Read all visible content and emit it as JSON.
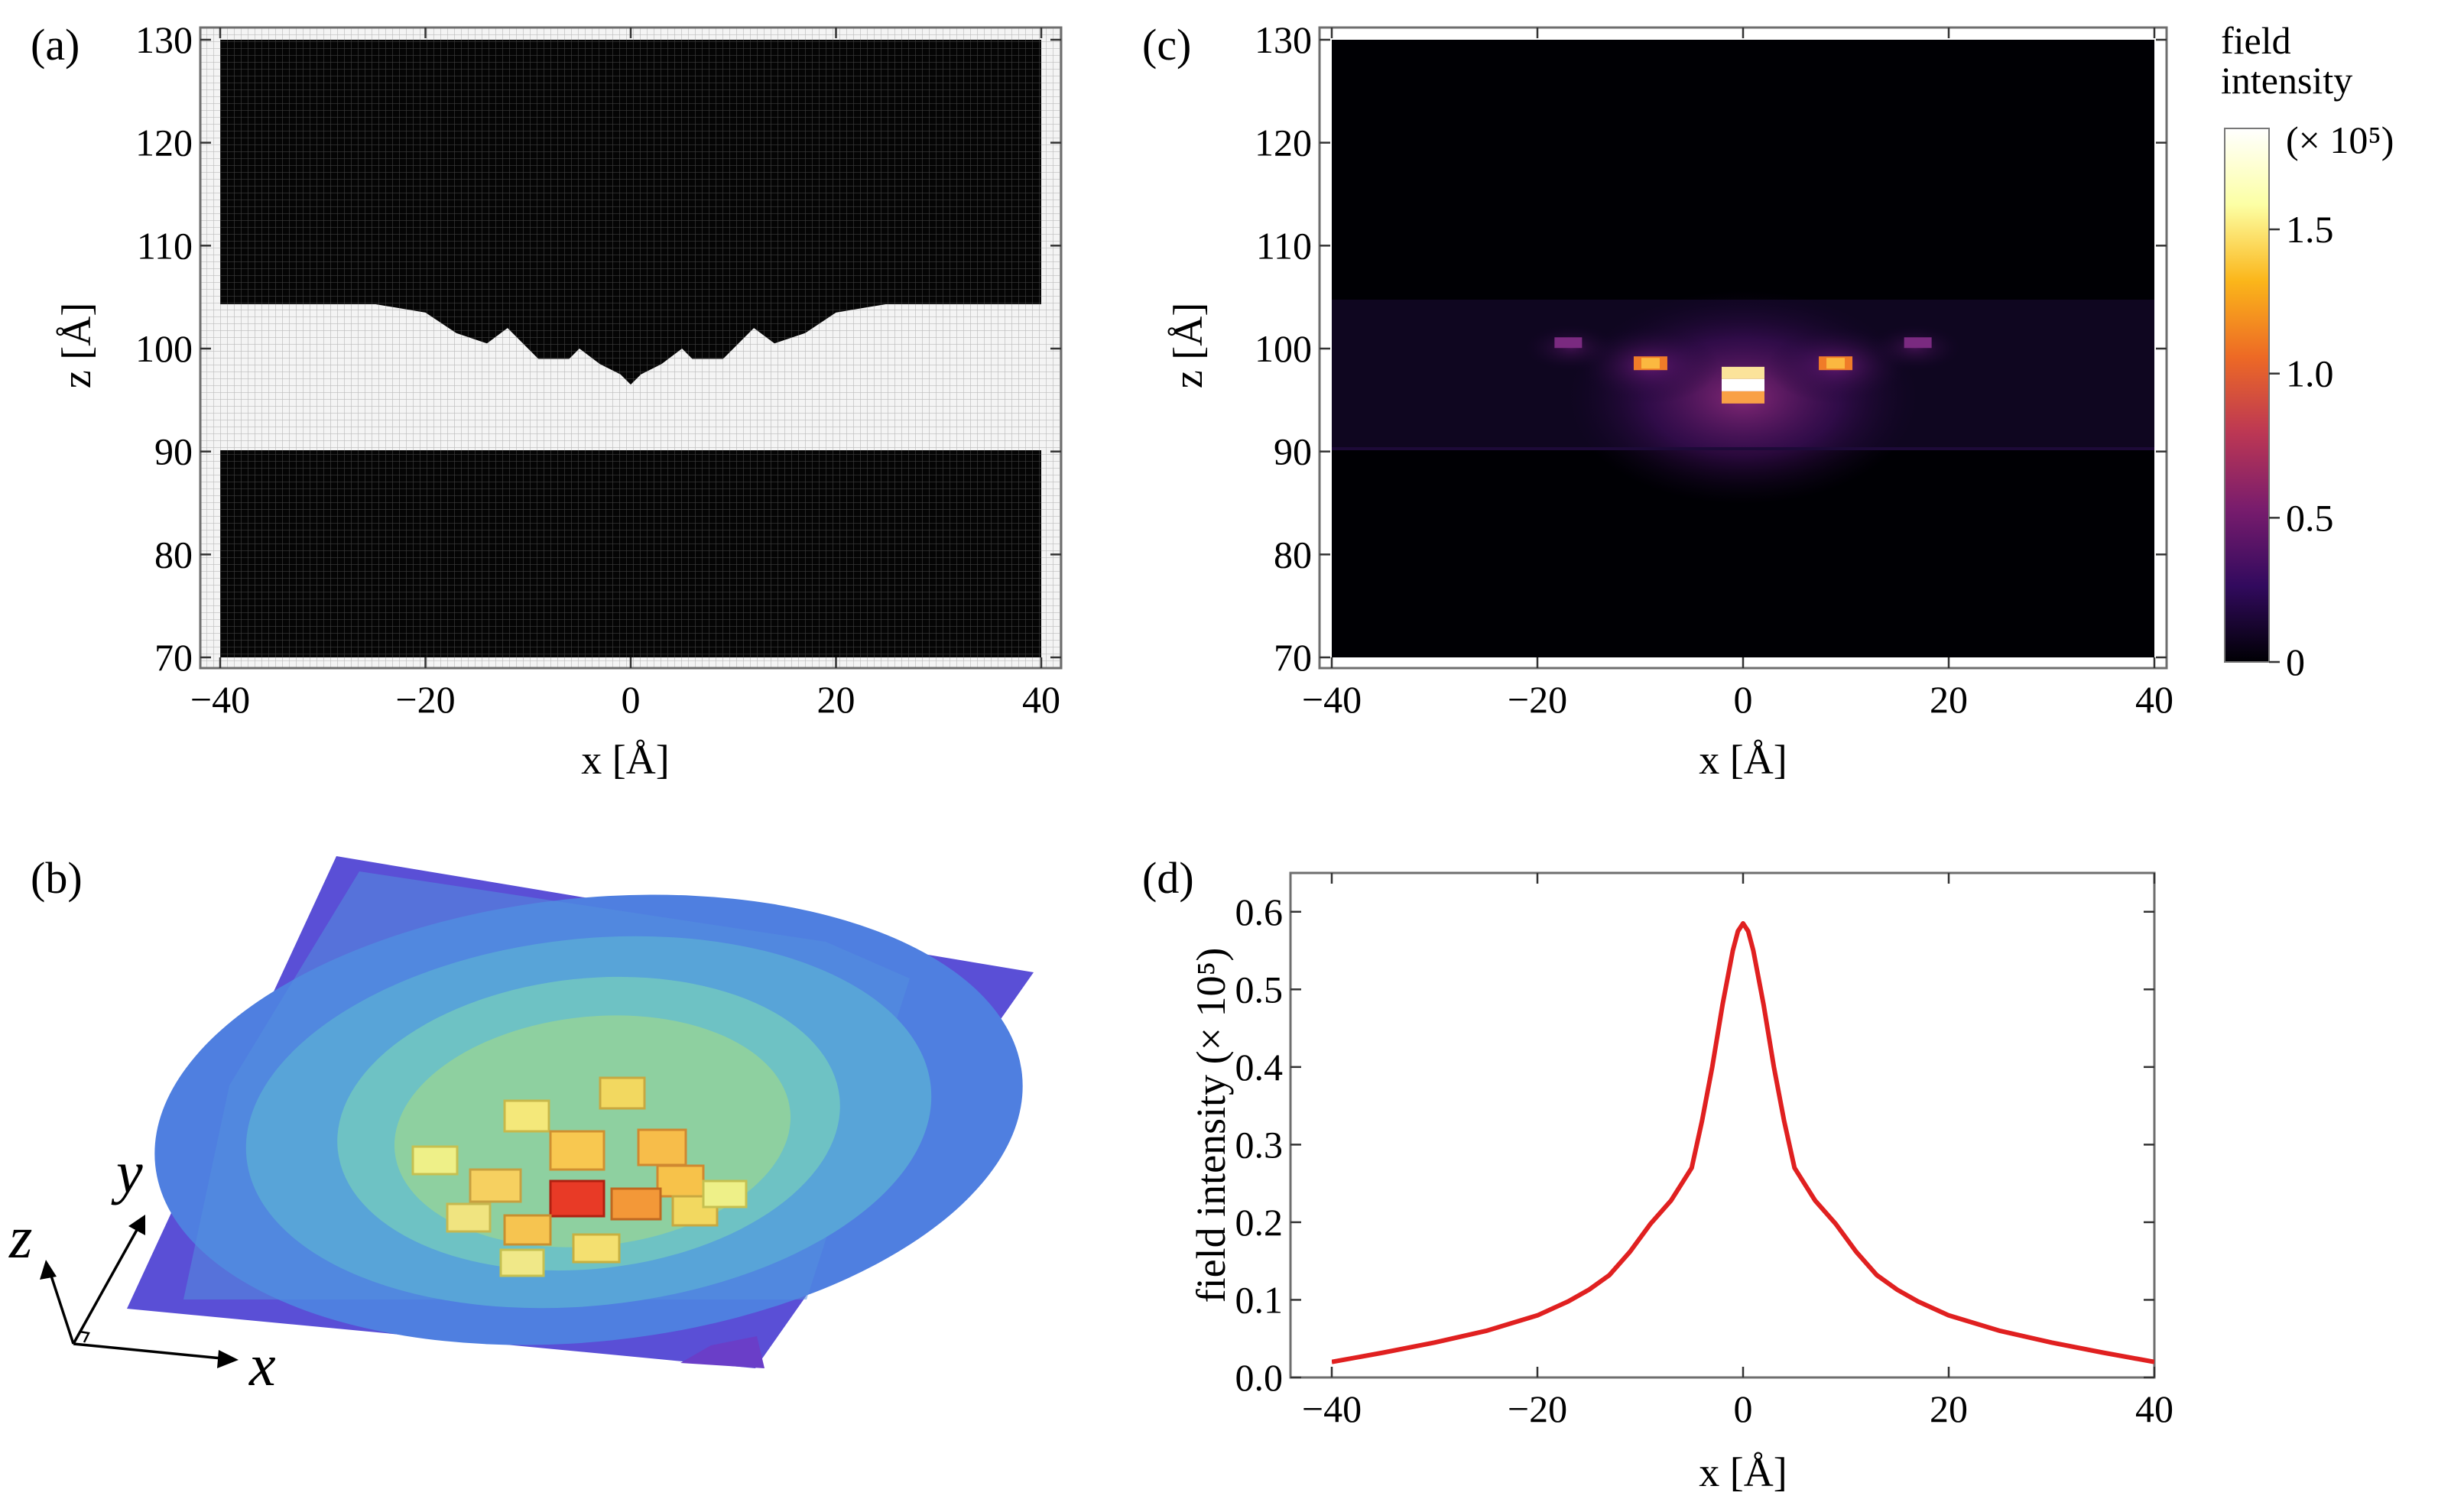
{
  "panels": {
    "a": {
      "label": "(a)"
    },
    "b": {
      "label": "(b)",
      "axes": {
        "x": "x",
        "y": "y",
        "z": "z"
      }
    },
    "c": {
      "label": "(c)"
    },
    "d": {
      "label": "(d)"
    }
  },
  "colorbar": {
    "title_line1": "field",
    "title_line2": "intensity",
    "unit": "(× 10⁵)",
    "ticks": [
      "0",
      "0.5",
      "1.0",
      "1.5"
    ],
    "tick_values": [
      0,
      0.5,
      1.0,
      1.5
    ],
    "range": [
      0,
      1.85
    ],
    "colors": [
      "#000004",
      "#320a5e",
      "#781c6d",
      "#bc3754",
      "#ed6925",
      "#fbb61a",
      "#fcffa4",
      "#ffffff"
    ]
  },
  "chart_data": [
    {
      "id": "a",
      "type": "heatmap",
      "description": "material mask",
      "xlabel": "x [Å]",
      "ylabel": "z [Å]",
      "xlim": [
        -40,
        40
      ],
      "ylim": [
        70,
        130
      ],
      "xticks": [
        -40,
        -20,
        0,
        20,
        40
      ],
      "yticks": [
        70,
        80,
        90,
        100,
        110,
        120,
        130
      ],
      "xtick_labels": [
        "−40",
        "−20",
        "0",
        "20",
        "40"
      ],
      "ytick_labels": [
        "70",
        "80",
        "90",
        "100",
        "110",
        "120",
        "130"
      ],
      "layer_bottom_z": 90,
      "layer_top_z": 104.5,
      "groove_profile": {
        "x": [
          -40,
          -26,
          -20,
          -17,
          -14,
          -12,
          -9,
          -6,
          -5,
          -3,
          -1,
          0,
          1,
          3,
          5,
          6,
          9,
          12,
          14,
          17,
          20,
          26,
          40
        ],
        "z": [
          104.5,
          104.5,
          103.5,
          101.5,
          100.5,
          102,
          99,
          99,
          100,
          98.5,
          97.5,
          96.5,
          97.5,
          98.5,
          100,
          99,
          99,
          102,
          100.5,
          101.5,
          103.5,
          104.5,
          104.5
        ]
      }
    },
    {
      "id": "c",
      "type": "heatmap",
      "description": "field intensity map",
      "xlabel": "x [Å]",
      "ylabel": "z [Å]",
      "xlim": [
        -40,
        40
      ],
      "ylim": [
        70,
        130
      ],
      "xticks": [
        -40,
        -20,
        0,
        20,
        40
      ],
      "yticks": [
        70,
        80,
        90,
        100,
        110,
        120,
        130
      ],
      "xtick_labels": [
        "−40",
        "−20",
        "0",
        "20",
        "40"
      ],
      "ytick_labels": [
        "70",
        "80",
        "90",
        "100",
        "110",
        "120",
        "130"
      ],
      "hotspots": [
        {
          "x": 0,
          "z": 96,
          "value": 1.85
        },
        {
          "x": -9,
          "z": 98.5,
          "value": 0.9
        },
        {
          "x": 9,
          "z": 98.5,
          "value": 0.9
        },
        {
          "x": -17,
          "z": 100.5,
          "value": 0.4
        },
        {
          "x": 17,
          "z": 100.5,
          "value": 0.4
        }
      ]
    },
    {
      "id": "d",
      "type": "line",
      "xlabel": "x [Å]",
      "ylabel": "field intensity (× 10⁵)",
      "xlim": [
        -40,
        40
      ],
      "ylim": [
        0,
        0.65
      ],
      "xticks": [
        -40,
        -20,
        0,
        20,
        40
      ],
      "yticks": [
        0,
        0.1,
        0.2,
        0.3,
        0.4,
        0.5,
        0.6
      ],
      "xtick_labels": [
        "−40",
        "−20",
        "0",
        "20",
        "40"
      ],
      "ytick_labels": [
        "0.0",
        "0.1",
        "0.2",
        "0.3",
        "0.4",
        "0.5",
        "0.6"
      ],
      "series": [
        {
          "name": "field intensity",
          "color": "#e02020",
          "x": [
            -40,
            -35,
            -30,
            -25,
            -20,
            -17,
            -15,
            -13,
            -11,
            -9,
            -7,
            -5,
            -4,
            -3,
            -2,
            -1,
            -0.5,
            0,
            0.5,
            1,
            2,
            3,
            4,
            5,
            7,
            9,
            11,
            13,
            15,
            17,
            20,
            25,
            30,
            35,
            40
          ],
          "y": [
            0.02,
            0.032,
            0.045,
            0.06,
            0.08,
            0.098,
            0.113,
            0.132,
            0.162,
            0.198,
            0.228,
            0.27,
            0.33,
            0.4,
            0.48,
            0.55,
            0.575,
            0.585,
            0.575,
            0.55,
            0.48,
            0.4,
            0.33,
            0.27,
            0.228,
            0.198,
            0.162,
            0.132,
            0.113,
            0.098,
            0.08,
            0.06,
            0.045,
            0.032,
            0.02
          ]
        }
      ]
    }
  ]
}
